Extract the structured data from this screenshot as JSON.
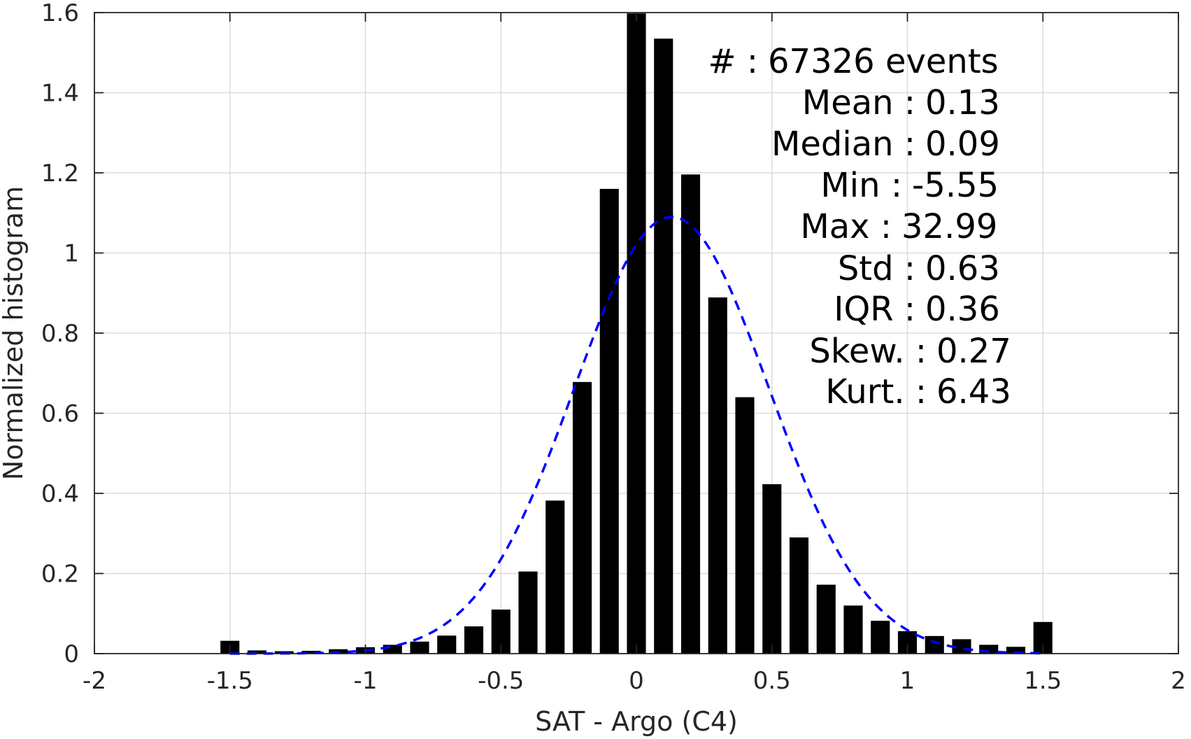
{
  "chart_data": {
    "type": "bar",
    "xlabel": "SAT - Argo (C4)",
    "ylabel": "Normalized histogram",
    "xlim": [
      -2,
      2
    ],
    "ylim": [
      0,
      1.6
    ],
    "xticks": [
      -2,
      -1.5,
      -1,
      -0.5,
      0,
      0.5,
      1,
      1.5,
      2
    ],
    "xtick_labels": [
      "-2",
      "-1.5",
      "-1",
      "-0.5",
      "0",
      "0.5",
      "1",
      "1.5",
      "2"
    ],
    "yticks": [
      0,
      0.2,
      0.4,
      0.6,
      0.8,
      1,
      1.2,
      1.4,
      1.6
    ],
    "ytick_labels": [
      "0",
      "0.2",
      "0.4",
      "0.6",
      "0.8",
      "1",
      "1.2",
      "1.4",
      "1.6"
    ],
    "grid": true,
    "bar_color": "#000000",
    "bar_width": 0.07,
    "x": [
      -1.5,
      -1.4,
      -1.3,
      -1.2,
      -1.1,
      -1.0,
      -0.9,
      -0.8,
      -0.7,
      -0.6,
      -0.5,
      -0.4,
      -0.3,
      -0.2,
      -0.1,
      0.0,
      0.1,
      0.2,
      0.3,
      0.4,
      0.5,
      0.6,
      0.7,
      0.8,
      0.9,
      1.0,
      1.1,
      1.2,
      1.3,
      1.4,
      1.5
    ],
    "values": [
      0.032,
      0.008,
      0.006,
      0.007,
      0.011,
      0.016,
      0.022,
      0.03,
      0.045,
      0.068,
      0.11,
      0.205,
      0.382,
      0.678,
      1.16,
      1.598,
      1.535,
      1.196,
      0.889,
      0.64,
      0.423,
      0.29,
      0.172,
      0.12,
      0.082,
      0.056,
      0.044,
      0.036,
      0.022,
      0.017,
      0.079
    ],
    "fit_curve": {
      "style": "dashed",
      "color": "#0000ff",
      "mean": 0.13,
      "std": 0.36,
      "peak": 1.09
    },
    "annotations": [
      {
        "label": "#  :",
        "value": "67326 events"
      },
      {
        "label": "Mean :",
        "value": "0.13"
      },
      {
        "label": "Median :",
        "value": "0.09"
      },
      {
        "label": "Min :",
        "value": "-5.55"
      },
      {
        "label": "Max :",
        "value": "32.99"
      },
      {
        "label": "Std :",
        "value": "0.63"
      },
      {
        "label": "IQR :",
        "value": "0.36"
      },
      {
        "label": "Skew. :",
        "value": "0.27"
      },
      {
        "label": "Kurt. :",
        "value": "6.43"
      }
    ]
  }
}
